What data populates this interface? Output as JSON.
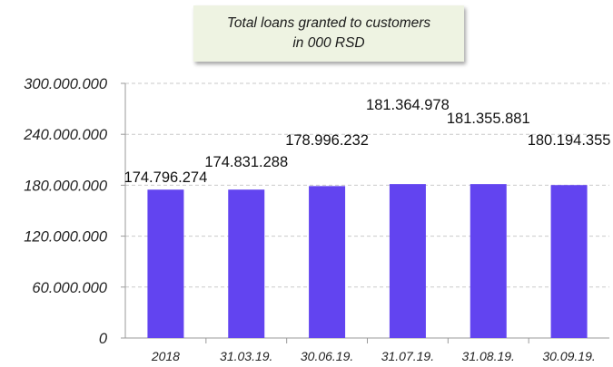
{
  "chart_data": {
    "type": "bar",
    "title_lines": [
      "Total loans granted to customers",
      "in 000 RSD"
    ],
    "categories": [
      "2018",
      "31.03.19.",
      "30.06.19.",
      "31.07.19.",
      "31.08.19.",
      "30.09.19."
    ],
    "values": [
      174796274,
      174831288,
      178996232,
      181364978,
      181355881,
      180194355
    ],
    "value_labels": [
      "174.796.274",
      "174.831.288",
      "178.996.232",
      "181.364.978",
      "181.355.881",
      "180.194.355"
    ],
    "y_ticks": [
      "0",
      "60.000.000",
      "120.000.000",
      "180.000.000",
      "240.000.000",
      "300.000.000"
    ],
    "ylim": [
      0,
      300000000
    ],
    "grid": true,
    "bar_color": "#6244f0",
    "xlabel": "",
    "ylabel": ""
  }
}
